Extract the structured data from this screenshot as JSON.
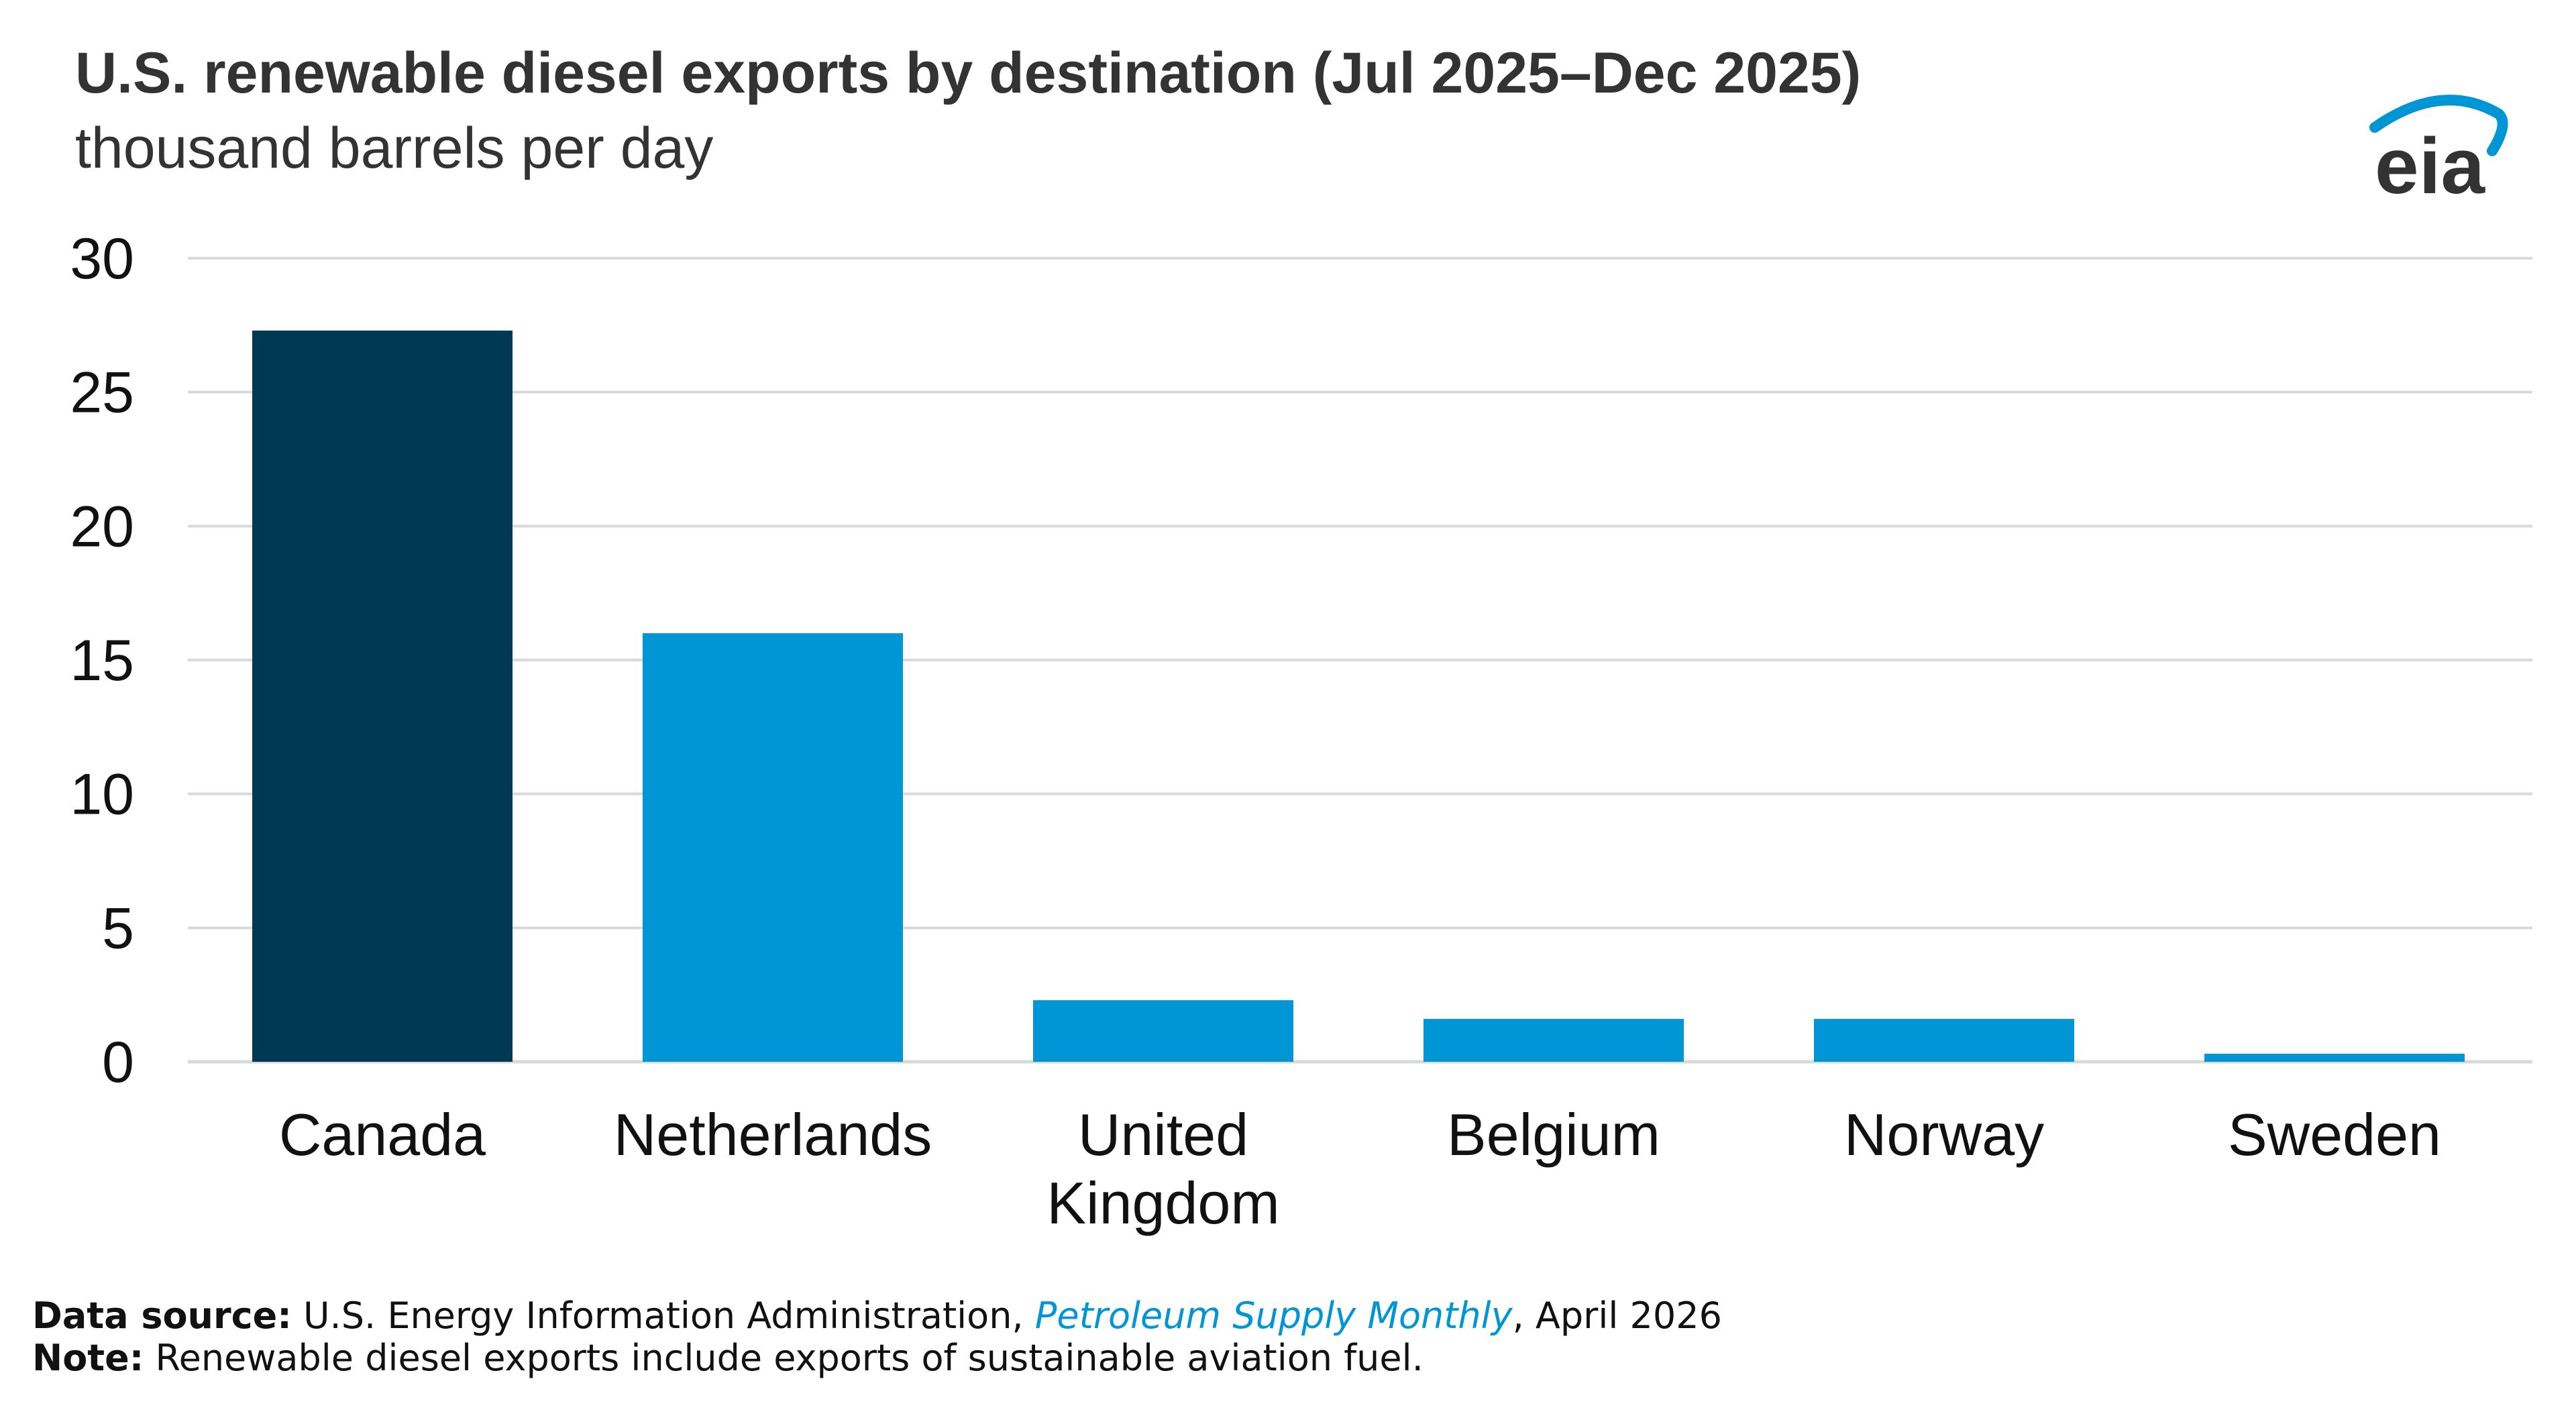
{
  "chart_data": {
    "type": "bar",
    "title": "U.S. renewable diesel exports by destination (Jul 2025–Dec 2025)",
    "subtitle": "thousand barrels per day",
    "categories": [
      "Canada",
      "Netherlands",
      "United Kingdom",
      "Belgium",
      "Norway",
      "Sweden"
    ],
    "category_lines": [
      [
        "Canada"
      ],
      [
        "Netherlands"
      ],
      [
        "United",
        "Kingdom"
      ],
      [
        "Belgium"
      ],
      [
        "Norway"
      ],
      [
        "Sweden"
      ]
    ],
    "values": [
      27.3,
      16.0,
      2.3,
      1.6,
      1.6,
      0.3
    ],
    "bar_colors": [
      "#003953",
      "#0096d6",
      "#0096d6",
      "#0096d6",
      "#0096d6",
      "#0096d6"
    ],
    "ylim": [
      0,
      30
    ],
    "yticks": [
      0,
      5,
      10,
      15,
      20,
      25,
      30
    ],
    "grid": true,
    "xlabel": "",
    "ylabel": ""
  },
  "footer": {
    "source_label": "Data source:",
    "source_text": "U.S. Energy Information Administration,",
    "source_publication": "Petroleum Supply Monthly",
    "source_date": ", April 2026",
    "note_label": "Note:",
    "note_text": "Renewable diesel exports include exports of sustainable aviation fuel."
  },
  "logo": {
    "text": "eia",
    "color": "#333333",
    "arc_color": "#0096d6"
  },
  "colors": {
    "gridline": "#d9d9d9",
    "axis_text": "#111111",
    "dark_bar": "#003953",
    "light_bar": "#0096d6"
  }
}
